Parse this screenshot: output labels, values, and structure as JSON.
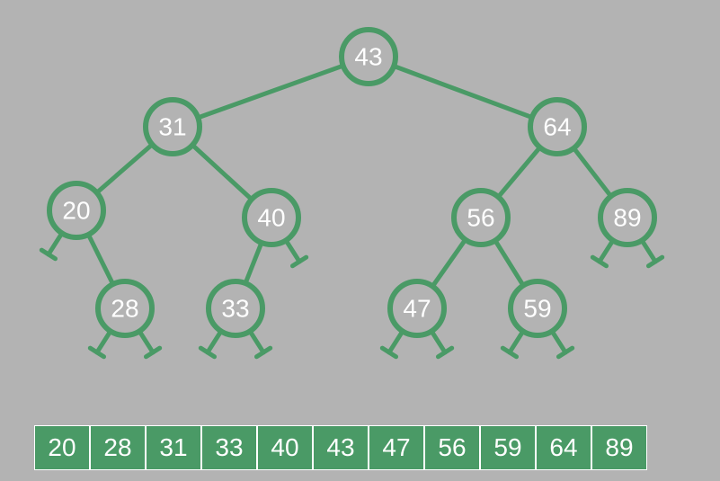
{
  "colors": {
    "background": "#b3b3b3",
    "node_fill": "#b3b3b3",
    "edge": "#4a9a66",
    "label": "#ffffff",
    "cell_fill": "#4a9a66",
    "cell_border": "#ffffff"
  },
  "tree": {
    "root": "n43",
    "nodes": [
      {
        "id": "n43",
        "label": "43",
        "left": "n31",
        "right": "n64"
      },
      {
        "id": "n31",
        "label": "31",
        "left": "n20",
        "right": "n40"
      },
      {
        "id": "n64",
        "label": "64",
        "left": "n56",
        "right": "n89"
      },
      {
        "id": "n20",
        "label": "20",
        "left": null,
        "right": "n28"
      },
      {
        "id": "n40",
        "label": "40",
        "left": "n33",
        "right": null
      },
      {
        "id": "n56",
        "label": "56",
        "left": "n47",
        "right": "n59"
      },
      {
        "id": "n89",
        "label": "89",
        "left": null,
        "right": null
      },
      {
        "id": "n28",
        "label": "28",
        "left": null,
        "right": null
      },
      {
        "id": "n33",
        "label": "33",
        "left": null,
        "right": null
      },
      {
        "id": "n47",
        "label": "47",
        "left": null,
        "right": null
      },
      {
        "id": "n59",
        "label": "59",
        "left": null,
        "right": null
      }
    ]
  },
  "sorted_array": [
    "20",
    "28",
    "31",
    "33",
    "40",
    "43",
    "47",
    "56",
    "59",
    "64",
    "89"
  ]
}
